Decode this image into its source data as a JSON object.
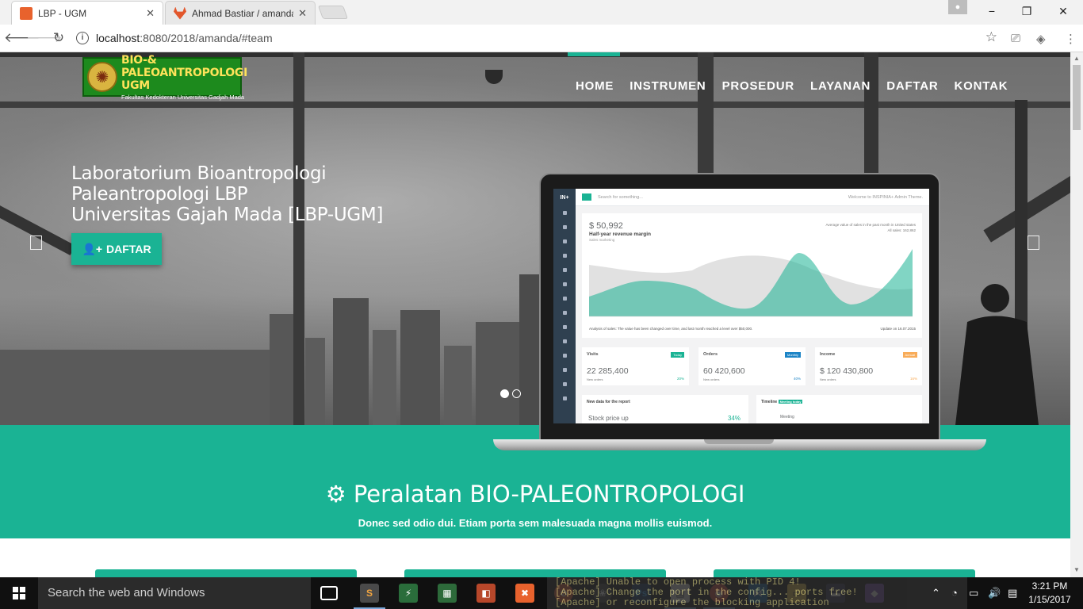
{
  "browser": {
    "tabs": [
      {
        "title": "LBP - UGM",
        "favicon_color": "#e8622d",
        "active": true
      },
      {
        "title": "Ahmad Bastiar / amanda",
        "favicon_color": "#e2572c",
        "active": false
      }
    ],
    "url_host": "localhost",
    "url_rest": ":8080/2018/amanda/#team",
    "window_controls": {
      "minimize": "−",
      "maximize": "❐",
      "close": "✕"
    }
  },
  "site": {
    "logo_title": "BIO-& PALEOANTROPOLOGI UGM",
    "logo_subtitle": "Fakultas Kedokteran Universitas Gadjah Mada",
    "menu": [
      "HOME",
      "INSTRUMEN",
      "PROSEDUR",
      "LAYANAN",
      "DAFTAR",
      "KONTAK"
    ],
    "hero": {
      "line1": "Laboratorium Bioantropologi",
      "line2": "Paleantropologi LBP",
      "line3": "Universitas Gajah Mada [LBP-UGM]",
      "cta_label": "DAFTAR",
      "cta_icon": "user-plus-icon",
      "carousel_active_slide": 1,
      "carousel_slides": 2
    },
    "section": {
      "title": "Peralatan BIO-PALEONTROPOLOGI",
      "title_icon": "gear-icon",
      "subtitle": "Donec sed odio dui. Etiam porta sem malesuada magna mollis euismod."
    }
  },
  "mockup": {
    "brand": "IN+",
    "search_placeholder": "Search for something...",
    "welcome": "Welcome to INSPINIA+ Admin Theme.",
    "chart": {
      "big_number": "$ 50,992",
      "title": "Half-year revenue margin",
      "subtitle": "Sales marketing",
      "avg_text": "Average value of sales in the past month in United states",
      "all_sales": "All sales: 162,862",
      "footer": "Analysis of sales: The value has been changed over time, and last month reached a level over $50,000.",
      "updated": "Update on 16.07.2015"
    },
    "stats": [
      {
        "label": "Visits",
        "badge": "Today",
        "badge_color": "#1ab394",
        "value": "22 285,400",
        "sub": "New orders",
        "pct": "20%",
        "pct_color": "#1ab394"
      },
      {
        "label": "Orders",
        "badge": "Monthly",
        "badge_color": "#1c84c6",
        "value": "60 420,600",
        "sub": "New orders",
        "pct": "40%",
        "pct_color": "#1c84c6"
      },
      {
        "label": "Income",
        "badge": "Annual",
        "badge_color": "#f8ac59",
        "value": "$ 120 430,800",
        "sub": "New orders",
        "pct": "16%",
        "pct_color": "#f8ac59"
      }
    ],
    "panels": [
      {
        "title": "New data for the report",
        "row": "Stock price up",
        "row_value": "34%"
      },
      {
        "title": "Timeline",
        "badge": "Meeting today",
        "row": "Meeting"
      }
    ]
  },
  "taskbar": {
    "search_placeholder": "Search the web and Windows",
    "apache_lines": [
      "[Apache]   Unable to open process with PID 4!",
      "[Apache]   Change the port in the config... ports free!",
      "[Apache]   or reconfigure the blocking application"
    ],
    "time": "3:21 PM",
    "date": "1/15/2017"
  }
}
